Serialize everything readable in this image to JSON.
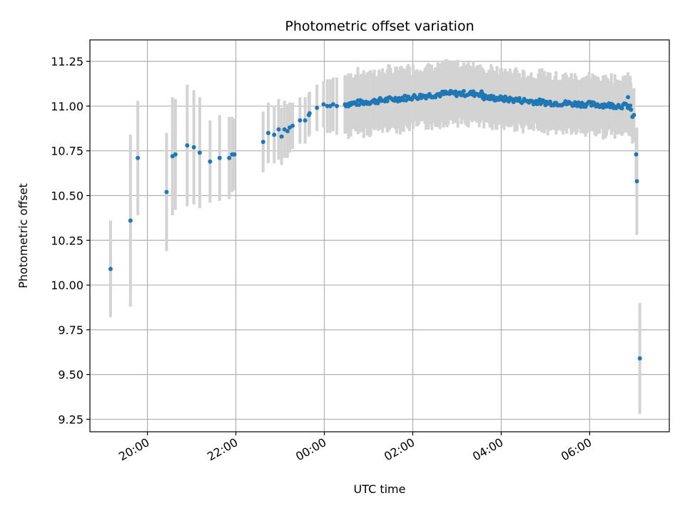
{
  "chart_data": {
    "type": "scatter",
    "title": "Photometric offset variation",
    "xlabel": "UTC time",
    "ylabel": "Photometric offset",
    "x_ticks": [
      "20:00",
      "22:00",
      "00:00",
      "02:00",
      "04:00",
      "06:00"
    ],
    "y_ticks": [
      "9.25",
      "9.50",
      "9.75",
      "10.00",
      "10.25",
      "10.50",
      "10.75",
      "11.00",
      "11.25"
    ],
    "x_range_hours": [
      18.7,
      31.8
    ],
    "y_range": [
      9.18,
      11.37
    ],
    "grid": true,
    "colors": {
      "point": "#1f77b4",
      "errorbar": "#d3d3d3",
      "grid": "#b0b0b0"
    },
    "series": [
      {
        "points": [
          {
            "t": "19:10",
            "y": 10.09,
            "err": 0.27
          },
          {
            "t": "19:37",
            "y": 10.36,
            "err": 0.48
          },
          {
            "t": "19:47",
            "y": 10.71,
            "err": 0.32
          },
          {
            "t": "20:26",
            "y": 10.52,
            "err": 0.33
          },
          {
            "t": "20:34",
            "y": 10.72,
            "err": 0.33
          },
          {
            "t": "20:38",
            "y": 10.73,
            "err": 0.31
          },
          {
            "t": "20:54",
            "y": 10.78,
            "err": 0.34
          },
          {
            "t": "21:03",
            "y": 10.77,
            "err": 0.32
          },
          {
            "t": "21:11",
            "y": 10.74,
            "err": 0.31
          },
          {
            "t": "21:25",
            "y": 10.69,
            "err": 0.23
          },
          {
            "t": "21:38",
            "y": 10.71,
            "err": 0.24
          },
          {
            "t": "21:51",
            "y": 10.71,
            "err": 0.23
          },
          {
            "t": "21:55",
            "y": 10.73,
            "err": 0.21
          },
          {
            "t": "21:58",
            "y": 10.73,
            "err": 0.2
          },
          {
            "t": "22:37",
            "y": 10.8,
            "err": 0.17
          },
          {
            "t": "22:44",
            "y": 10.85,
            "err": 0.17
          },
          {
            "t": "22:52",
            "y": 10.84,
            "err": 0.16
          },
          {
            "t": "22:58",
            "y": 10.87,
            "err": 0.17
          },
          {
            "t": "23:02",
            "y": 10.83,
            "err": 0.16
          },
          {
            "t": "23:06",
            "y": 10.87,
            "err": 0.16
          },
          {
            "t": "23:10",
            "y": 10.86,
            "err": 0.15
          },
          {
            "t": "23:13",
            "y": 10.88,
            "err": 0.14
          },
          {
            "t": "23:17",
            "y": 10.89,
            "err": 0.13
          },
          {
            "t": "23:27",
            "y": 10.92,
            "err": 0.13
          },
          {
            "t": "23:34",
            "y": 10.92,
            "err": 0.13
          },
          {
            "t": "23:39",
            "y": 10.95,
            "err": 0.12
          },
          {
            "t": "23:40",
            "y": 10.96,
            "err": 0.12
          },
          {
            "t": "23:50",
            "y": 10.99,
            "err": 0.13
          },
          {
            "t": "23:59",
            "y": 11.01,
            "err": 0.13
          },
          {
            "t": "00:04",
            "y": 11.0,
            "err": 0.15
          },
          {
            "t": "00:08",
            "y": 11.0,
            "err": 0.15
          },
          {
            "t": "00:12",
            "y": 11.01,
            "err": 0.15
          },
          {
            "t": "00:17",
            "y": 11.0,
            "err": 0.16
          }
        ],
        "dense_segments": [
          {
            "from": "00:28",
            "to": "02:45",
            "y_start": 11.01,
            "y_end": 11.07,
            "err": 0.16
          },
          {
            "from": "02:45",
            "to": "03:35",
            "y_start": 11.07,
            "y_end": 11.07,
            "err": 0.16
          },
          {
            "from": "03:35",
            "to": "05:00",
            "y_start": 11.05,
            "y_end": 11.02,
            "err": 0.15
          },
          {
            "from": "05:00",
            "to": "06:55",
            "y_start": 11.02,
            "y_end": 11.0,
            "err": 0.15
          }
        ],
        "tail_points": [
          {
            "t": "06:52",
            "y": 11.05,
            "err": 0.14
          },
          {
            "t": "06:56",
            "y": 10.98,
            "err": 0.15
          },
          {
            "t": "06:58",
            "y": 10.94,
            "err": 0.15
          },
          {
            "t": "07:00",
            "y": 10.95,
            "err": 0.15
          },
          {
            "t": "07:03",
            "y": 10.73,
            "err": 0.14
          },
          {
            "t": "07:04",
            "y": 10.58,
            "err": 0.3
          },
          {
            "t": "07:08",
            "y": 9.59,
            "err": 0.31
          }
        ]
      }
    ]
  }
}
